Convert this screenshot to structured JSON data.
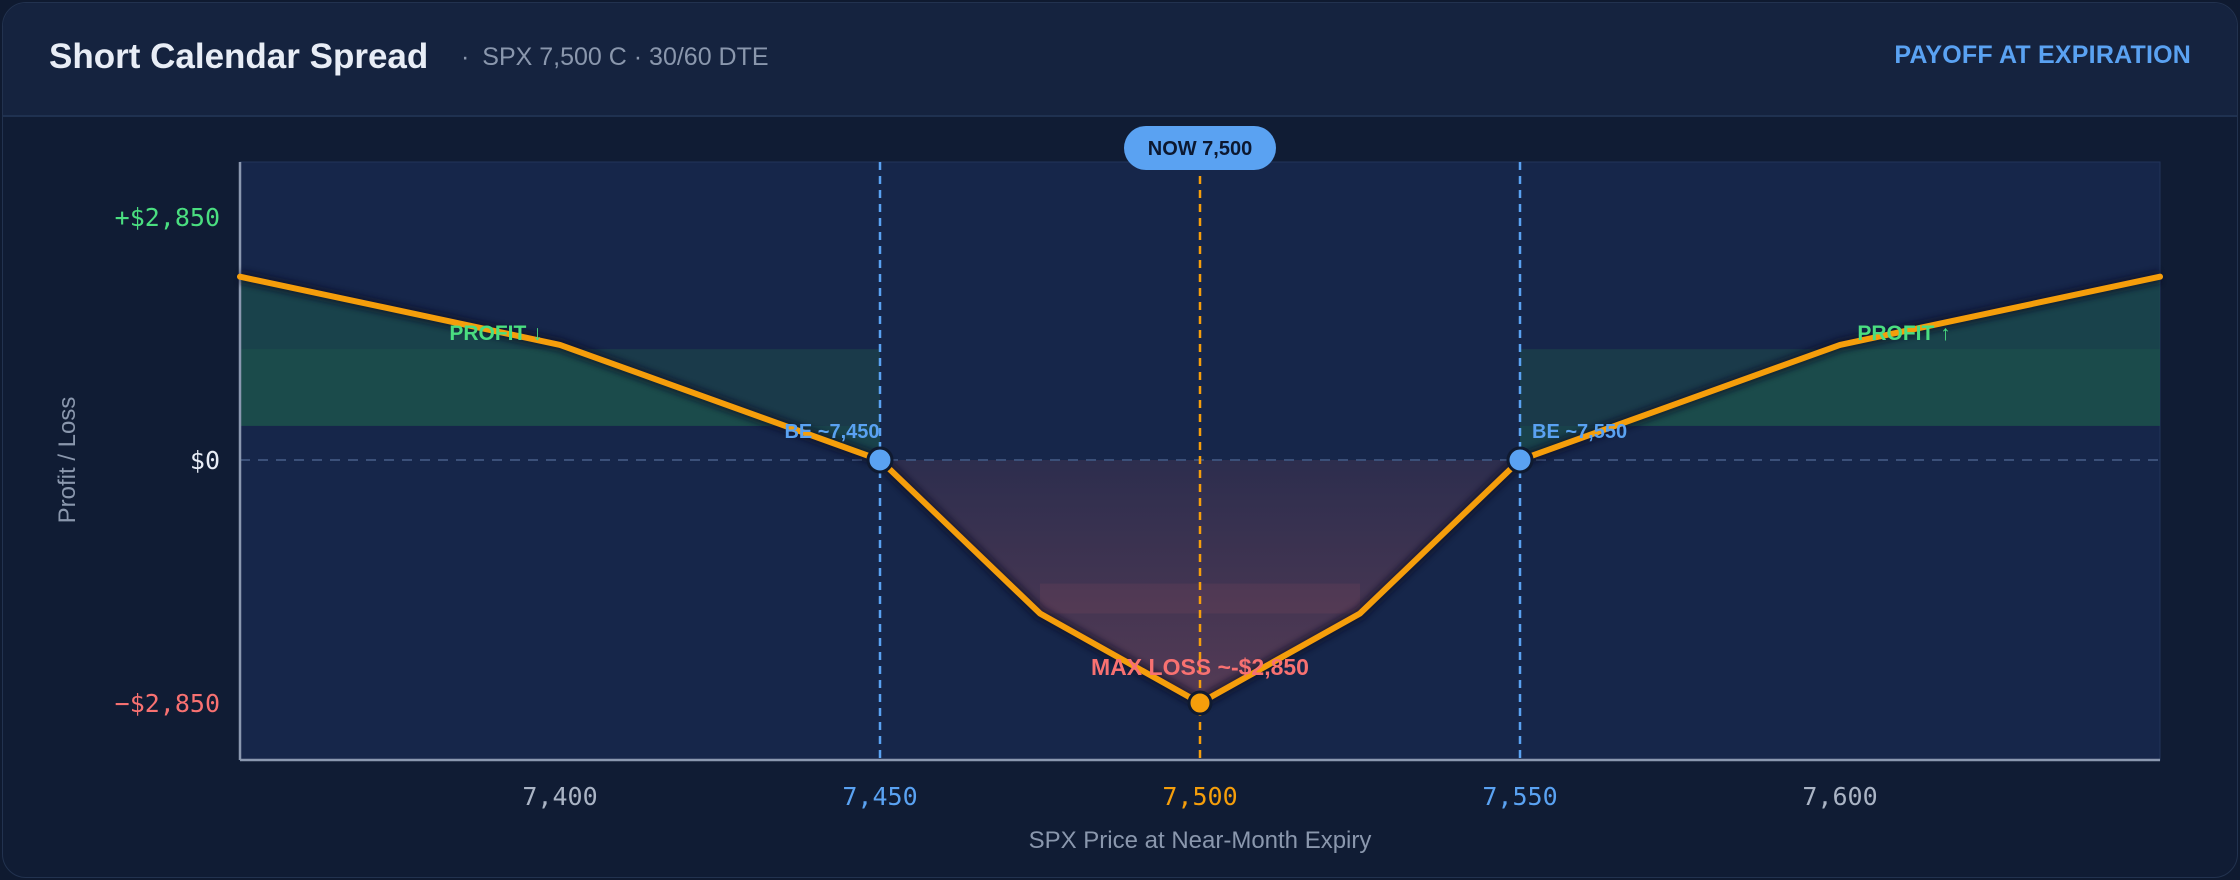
{
  "header": {
    "title": "Short Calendar Spread",
    "subtitle_parts": [
      "SPX 7,500 C",
      "30/60 DTE"
    ],
    "mode_label": "PAYOFF AT EXPIRATION"
  },
  "colors": {
    "payoff_line": "#f59e0b",
    "breakeven": "#5aa2f2",
    "profit": "#4ade80",
    "loss": "#f87171",
    "now_badge": "#5aa2f2",
    "background": "#101c34"
  },
  "chart_data": {
    "type": "line",
    "xlabel": "SPX Price at Near-Month Expiry",
    "ylabel": "Profit / Loss",
    "xlim": [
      7350,
      7650
    ],
    "ylim": [
      -3100,
      3500
    ],
    "x_ticks": [
      {
        "value": 7400,
        "label": "7,400",
        "role": "normal"
      },
      {
        "value": 7450,
        "label": "7,450",
        "role": "breakeven"
      },
      {
        "value": 7500,
        "label": "7,500",
        "role": "now"
      },
      {
        "value": 7550,
        "label": "7,550",
        "role": "breakeven"
      },
      {
        "value": 7600,
        "label": "7,600",
        "role": "normal"
      }
    ],
    "y_ticks": [
      {
        "value": 2850,
        "label": "+$2,850",
        "role": "profit"
      },
      {
        "value": 0,
        "label": "$0",
        "role": "zero"
      },
      {
        "value": -2850,
        "label": "−$2,850",
        "role": "loss"
      }
    ],
    "series": [
      {
        "x": [
          7350,
          7400,
          7450,
          7475,
          7500,
          7525,
          7550,
          7600,
          7650
        ],
        "y": [
          2150,
          1350,
          0,
          -1800,
          -2850,
          -1800,
          0,
          1350,
          2150
        ]
      }
    ],
    "profit_bands": [
      {
        "x": [
          7350,
          7450
        ],
        "y": [
          400,
          1300
        ]
      },
      {
        "x": [
          7550,
          7650
        ],
        "y": [
          400,
          1300
        ]
      }
    ],
    "loss_band": {
      "x": [
        7450,
        7550
      ],
      "y_top": 0,
      "y_mid": -1450
    },
    "now": {
      "value": 7500,
      "label": "NOW 7,500"
    },
    "breakevens": [
      {
        "value": 7450,
        "label": "BE ~7,450"
      },
      {
        "value": 7550,
        "label": "BE ~7,550"
      }
    ],
    "max_loss": {
      "value": -2850,
      "x": 7500,
      "label": "MAX LOSS  ~-$2,850"
    },
    "annotations": [
      {
        "text": "PROFIT ↓",
        "x": 7390,
        "y": 1500
      },
      {
        "text": "PROFIT ↑",
        "x": 7610,
        "y": 1500
      }
    ]
  }
}
